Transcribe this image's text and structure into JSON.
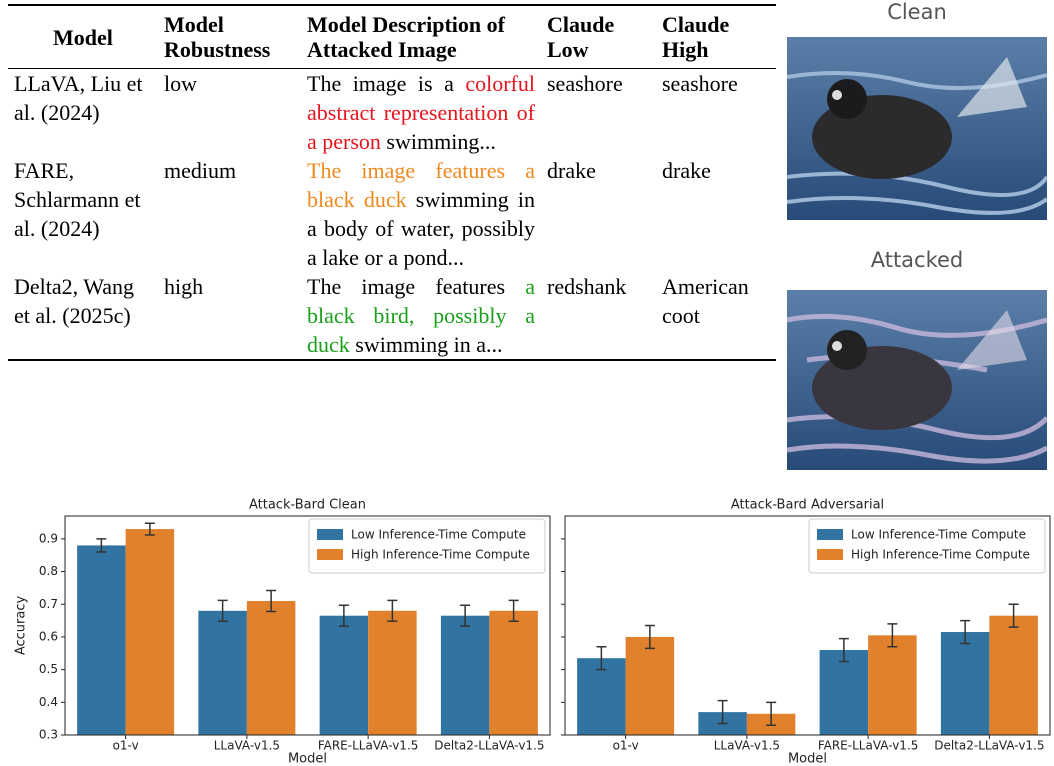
{
  "table": {
    "header": [
      "Model",
      "Model Robustness",
      "Model Description of Attacked Image",
      "Claude Low",
      "Claude High"
    ],
    "rows": [
      [
        "LLaVA, Liu et al. (2024)",
        "low",
        [
          {
            "text": "The image is a "
          },
          {
            "text": "colorful abstract representation of a person",
            "color": "#e8141c"
          },
          {
            "text": " swimming..."
          }
        ],
        "seashore",
        "seashore"
      ],
      [
        "FARE, Schlarmann et al. (2024)",
        "medium",
        [
          {
            "text": "The image features a black duck",
            "color": "#f0891c"
          },
          {
            "text": " swimming in a body of water, possibly a lake or a pond..."
          }
        ],
        "drake",
        "drake"
      ],
      [
        "Delta2, Wang et al. (2025c)",
        "high",
        [
          {
            "text": "The image features "
          },
          {
            "text": "a black bird, possibly a duck",
            "color": "#1aa01a"
          },
          {
            "text": " swimming in a..."
          }
        ],
        "redshank",
        "American coot"
      ]
    ]
  },
  "images": [
    {
      "label": "Clean"
    },
    {
      "label": "Attacked"
    }
  ],
  "chart_data": [
    {
      "type": "bar",
      "title": "Attack-Bard Clean",
      "xlabel": "Model",
      "ylabel": "Accuracy",
      "categories": [
        "o1-v",
        "LLaVA-v1.5",
        "FARE-LLaVA-v1.5",
        "Delta2-LLaVA-v1.5"
      ],
      "series": [
        {
          "name": "Low Inference-Time Compute",
          "color": "#3274a1",
          "values": [
            0.88,
            0.68,
            0.665,
            0.665
          ],
          "errors": [
            0.02,
            0.032,
            0.032,
            0.032
          ]
        },
        {
          "name": "High Inference-Time Compute",
          "color": "#e1812c",
          "values": [
            0.93,
            0.71,
            0.68,
            0.68
          ],
          "errors": [
            0.018,
            0.032,
            0.032,
            0.032
          ]
        }
      ],
      "ylim": [
        0.3,
        0.97
      ],
      "yticks": [
        0.3,
        0.4,
        0.5,
        0.6,
        0.7,
        0.8,
        0.9
      ],
      "show_ytick_labels": true,
      "legend": "upper right"
    },
    {
      "type": "bar",
      "title": "Attack-Bard Adversarial",
      "xlabel": "Model",
      "categories": [
        "o1-v",
        "LLaVA-v1.5",
        "FARE-LLaVA-v1.5",
        "Delta2-LLaVA-v1.5"
      ],
      "series": [
        {
          "name": "Low Inference-Time Compute",
          "color": "#3274a1",
          "values": [
            0.535,
            0.37,
            0.56,
            0.615
          ],
          "errors": [
            0.035,
            0.035,
            0.035,
            0.035
          ]
        },
        {
          "name": "High Inference-Time Compute",
          "color": "#e1812c",
          "values": [
            0.6,
            0.365,
            0.605,
            0.665
          ],
          "errors": [
            0.035,
            0.035,
            0.035,
            0.035
          ]
        }
      ],
      "ylim": [
        0.3,
        0.97
      ],
      "yticks": [
        0.3,
        0.4,
        0.5,
        0.6,
        0.7,
        0.8,
        0.9
      ],
      "show_ytick_labels": false,
      "legend": "upper right"
    }
  ]
}
